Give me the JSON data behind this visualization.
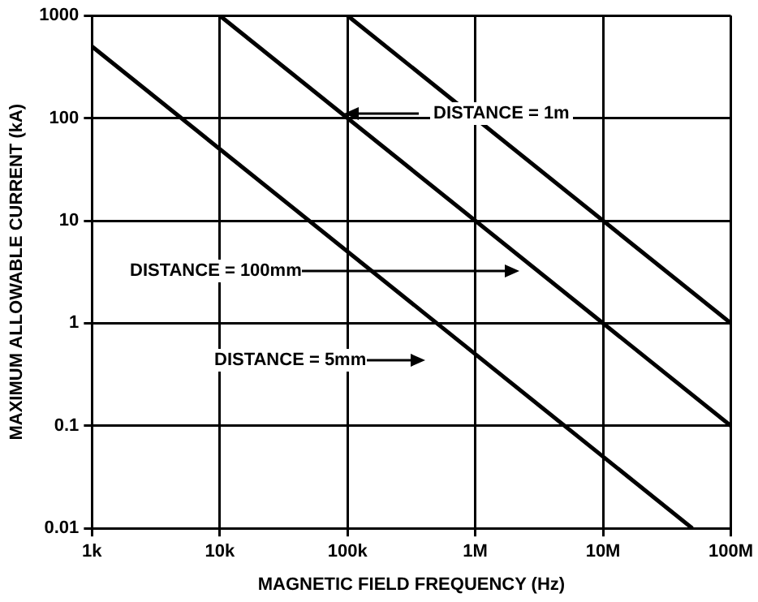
{
  "chart_data": {
    "type": "line",
    "xlabel": "MAGNETIC FIELD FREQUENCY (Hz)",
    "ylabel": "MAXIMUM ALLOWABLE CURRENT (kA)",
    "log": "xy",
    "grid": true,
    "legend": false,
    "marker": "none",
    "line_style": "solid",
    "xlim": [
      1000,
      100000000
    ],
    "ylim": [
      0.01,
      1000
    ],
    "xticks": [
      {
        "value": 1000,
        "label": "1k"
      },
      {
        "value": 10000,
        "label": "10k"
      },
      {
        "value": 100000,
        "label": "100k"
      },
      {
        "value": 1000000,
        "label": "1M"
      },
      {
        "value": 10000000,
        "label": "10M"
      },
      {
        "value": 100000000,
        "label": "100M"
      }
    ],
    "yticks": [
      0.01,
      0.1,
      1,
      10,
      100,
      1000
    ],
    "series": [
      {
        "color": "#000000",
        "x": [
          1000,
          50000000
        ],
        "values": [
          500,
          0.01
        ]
      },
      {
        "color": "#000000",
        "x": [
          10000,
          100000000
        ],
        "values": [
          1000,
          0.1
        ]
      },
      {
        "color": "#000000",
        "x": [
          100000,
          100000000
        ],
        "values": [
          1000,
          1
        ]
      }
    ],
    "annotations": [
      "DISTANCE = 1m",
      "DISTANCE = 100mm",
      "DISTANCE = 5mm"
    ]
  }
}
